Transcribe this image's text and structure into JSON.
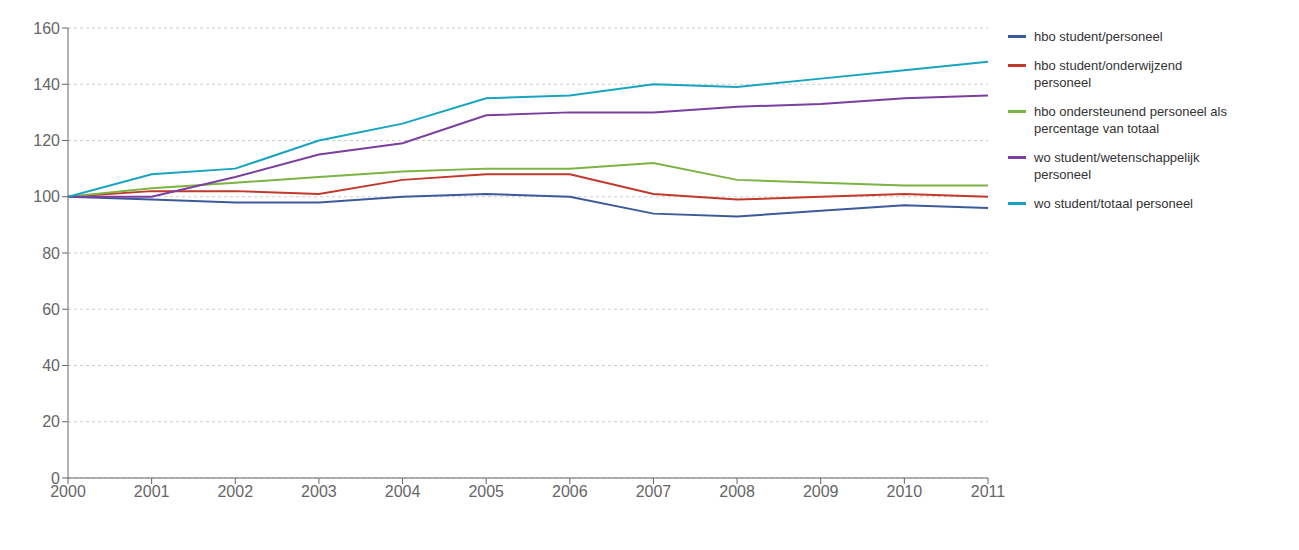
{
  "chart_data": {
    "type": "line",
    "x": [
      2000,
      2001,
      2002,
      2003,
      2004,
      2005,
      2006,
      2007,
      2008,
      2009,
      2010,
      2011
    ],
    "series": [
      {
        "name": "hbo student/personeel",
        "color": "#3C5A9A",
        "values": [
          100,
          99,
          98,
          98,
          100,
          101,
          100,
          94,
          93,
          95,
          97,
          96
        ]
      },
      {
        "name": "hbo student/onderwijzend\npersoneel",
        "color": "#C0392B",
        "values": [
          100,
          102,
          102,
          101,
          106,
          108,
          108,
          101,
          99,
          100,
          101,
          100
        ]
      },
      {
        "name": "hbo ondersteunend personeel als\npercentage van totaal",
        "color": "#7CB342",
        "values": [
          100,
          103,
          105,
          107,
          109,
          110,
          110,
          112,
          106,
          105,
          104,
          104
        ]
      },
      {
        "name": "wo student/wetenschappelijk\npersoneel",
        "color": "#7B3FA0",
        "values": [
          100,
          100,
          107,
          115,
          119,
          129,
          130,
          130,
          132,
          133,
          135,
          136
        ]
      },
      {
        "name": "wo student/totaal personeel",
        "color": "#17A4C2",
        "values": [
          100,
          108,
          110,
          120,
          126,
          135,
          136,
          140,
          139,
          142,
          145,
          148
        ]
      }
    ],
    "xlim": [
      2000,
      2011
    ],
    "xticks": [
      2000,
      2001,
      2002,
      2003,
      2004,
      2005,
      2006,
      2007,
      2008,
      2009,
      2010,
      2011
    ],
    "ylim": [
      0,
      160
    ],
    "yticks": [
      0,
      20,
      40,
      60,
      80,
      100,
      120,
      140,
      160
    ],
    "grid": true,
    "legend": "right"
  }
}
